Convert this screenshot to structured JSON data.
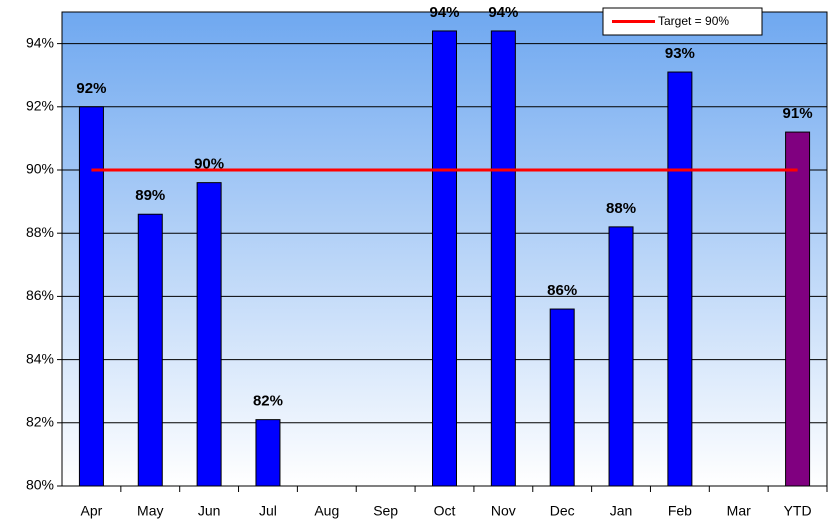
{
  "chart_data": {
    "type": "bar",
    "categories": [
      "Apr",
      "May",
      "Jun",
      "Jul",
      "Aug",
      "Sep",
      "Oct",
      "Nov",
      "Dec",
      "Jan",
      "Feb",
      "Mar",
      "YTD"
    ],
    "values": [
      92.0,
      88.6,
      89.6,
      82.1,
      null,
      null,
      94.4,
      94.4,
      85.6,
      88.2,
      93.1,
      null,
      91.2
    ],
    "value_labels": [
      "92%",
      "89%",
      "90%",
      "82%",
      null,
      null,
      "94%",
      "94%",
      "86%",
      "88%",
      "93%",
      null,
      "91%"
    ],
    "colors": [
      "#0000ff",
      "#0000ff",
      "#0000ff",
      "#0000ff",
      "#0000ff",
      "#0000ff",
      "#0000ff",
      "#0000ff",
      "#0000ff",
      "#0000ff",
      "#0000ff",
      "#0000ff",
      "#800080"
    ],
    "target": {
      "name": "Target = 90%",
      "value": 90,
      "color": "#ff0000"
    },
    "ylim": [
      80,
      95
    ],
    "yticks": [
      {
        "value": 80,
        "label": "80%"
      },
      {
        "value": 82,
        "label": "82%"
      },
      {
        "value": 84,
        "label": "84%"
      },
      {
        "value": 86,
        "label": "86%"
      },
      {
        "value": 88,
        "label": "88%"
      },
      {
        "value": 90,
        "label": "90%"
      },
      {
        "value": 92,
        "label": "92%"
      },
      {
        "value": 94,
        "label": "94%"
      }
    ],
    "grid": true
  }
}
